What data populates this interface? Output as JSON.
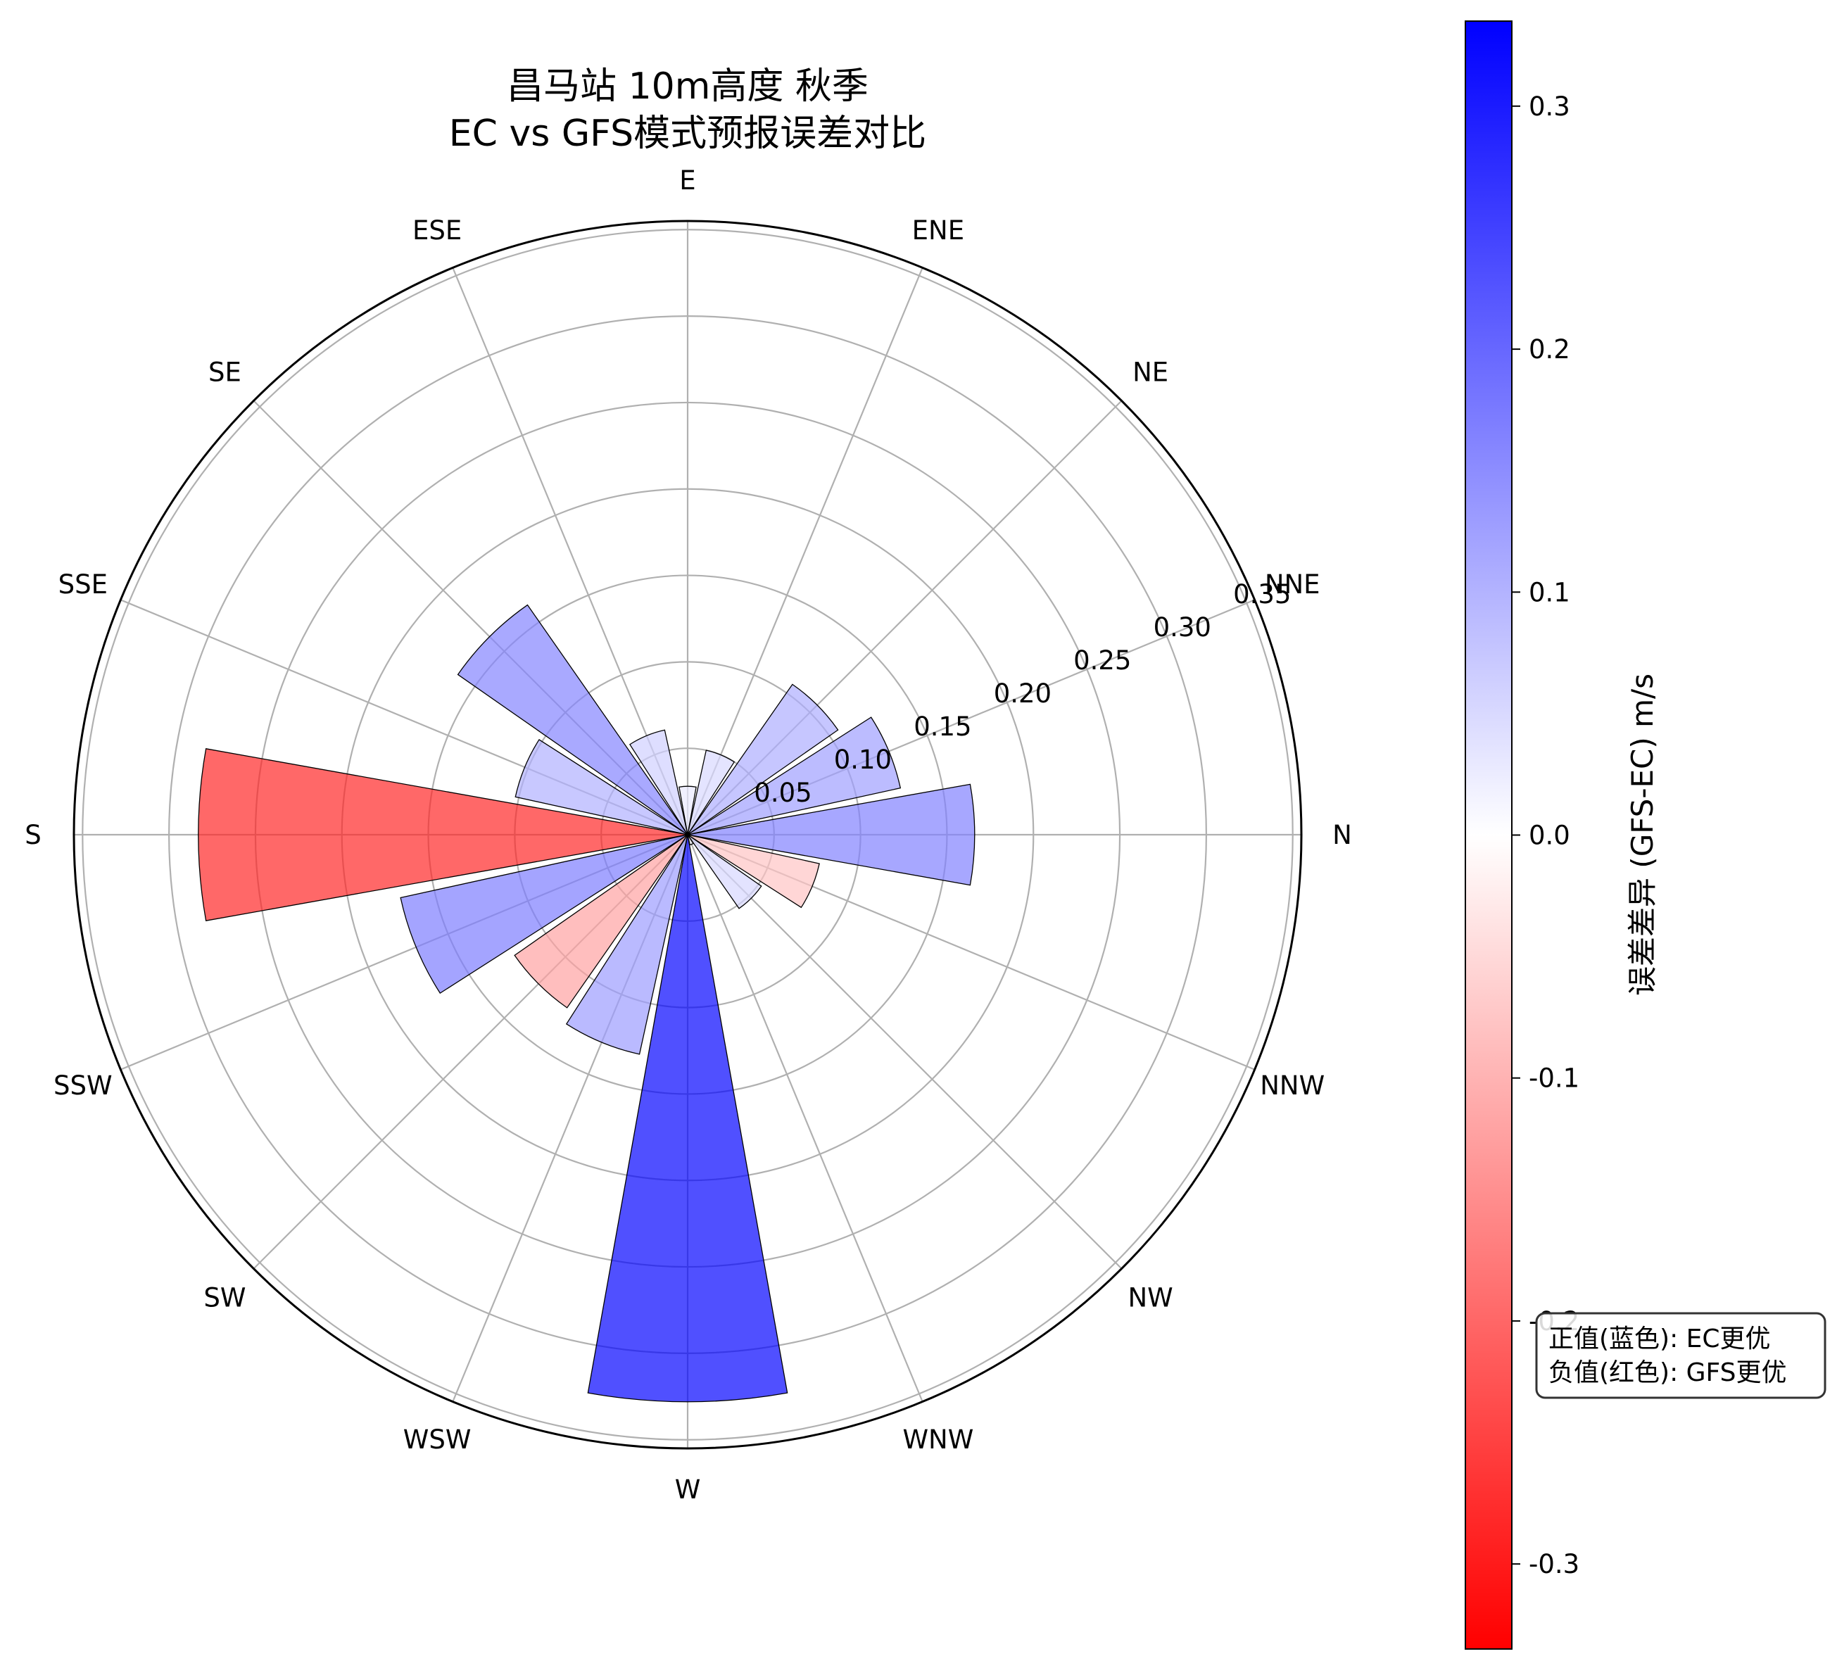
{
  "chart_data": {
    "type": "bar",
    "subtype": "polar-rose",
    "title": "昌马站 10m高度 秋季\nEC vs GFS模式预报误差对比",
    "title_lines": [
      "昌马站 10m高度 秋季",
      "EC vs GFS模式预报误差对比"
    ],
    "categories": [
      "N",
      "NNE",
      "NE",
      "ENE",
      "E",
      "ESE",
      "SE",
      "SSE",
      "S",
      "SSW",
      "SW",
      "WSW",
      "W",
      "WNW",
      "NW",
      "NNW"
    ],
    "values": [
      0.166,
      0.126,
      0.106,
      0.05,
      0.028,
      0.062,
      0.162,
      0.102,
      0.283,
      0.17,
      0.122,
      0.13,
      0.328,
      0.006,
      0.052,
      0.078
    ],
    "bar_heights": [
      0.166,
      0.126,
      0.106,
      0.05,
      0.028,
      0.062,
      0.162,
      0.102,
      0.283,
      0.17,
      0.122,
      0.13,
      0.328,
      0.006,
      0.052,
      0.078
    ],
    "signed_values": [
      0.166,
      0.126,
      0.106,
      0.05,
      0.028,
      0.062,
      0.162,
      0.102,
      -0.283,
      0.17,
      -0.122,
      0.13,
      0.328,
      0.006,
      0.052,
      -0.078
    ],
    "radial_ticks": [
      "0.05",
      "0.10",
      "0.15",
      "0.20",
      "0.25",
      "0.30",
      "0.35"
    ],
    "rlim": [
      0,
      0.355
    ],
    "colorbar": {
      "label": "误差差异 (GFS-EC) m/s",
      "range": [
        -0.335,
        0.335
      ],
      "ticks": [
        "0.3",
        "0.2",
        "0.1",
        "0.0",
        "-0.1",
        "-0.2",
        "-0.3"
      ],
      "low_color": "#ff0000",
      "mid_color": "#ffffff",
      "high_color": "#0000ff"
    },
    "annotation": [
      "正值(蓝色): EC更优",
      "负值(红色): GFS更优"
    ],
    "grid": true,
    "orientation": "N at east (0°), counterclockwise"
  },
  "colors": {
    "positive": "#0000ff",
    "negative": "#ff0000",
    "grid": "#b0b0b0",
    "bar_edge": "#000000"
  }
}
